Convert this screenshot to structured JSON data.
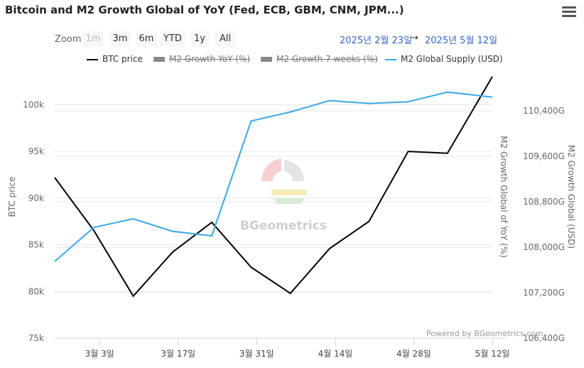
{
  "title": "Bitcoin and M2 Growth Global of YoY (Fed, ECB, GBM, CNM, JPM...)",
  "menu_icon": "hamburger-menu-icon",
  "zoom": {
    "label": "Zoom",
    "buttons": [
      "1m",
      "3m",
      "6m",
      "YTD",
      "1y",
      "All"
    ],
    "disabled": "1m"
  },
  "date_range": {
    "from": "2025년 2월 23일",
    "arrow": "→",
    "to": "2025년 5월 12일"
  },
  "legend": [
    {
      "label": "BTC price",
      "color": "#000000",
      "visible": true
    },
    {
      "label": "M2 Growth YoY (%)",
      "color": "#888888",
      "visible": false
    },
    {
      "label": "M2 Growth 7 weeks (%)",
      "color": "#888888",
      "visible": false
    },
    {
      "label": "M2 Global Supply (USD)",
      "color": "#3aa8e6",
      "visible": true
    }
  ],
  "credits": "Powered by BGeometrics.com",
  "watermark": "BGeometrics",
  "chart_data": {
    "type": "line",
    "title": "Bitcoin and M2 Growth Global of YoY (Fed, ECB, GBM, CNM, JPM...)",
    "x": [
      "2025-02-23",
      "2025-02-28",
      "2025-03-05",
      "2025-03-10",
      "2025-03-15",
      "2025-03-20",
      "2025-03-25",
      "2025-03-30",
      "2025-04-04",
      "2025-04-09",
      "2025-04-14",
      "2025-04-19",
      "2025-04-24",
      "2025-04-29",
      "2025-05-04",
      "2025-05-09",
      "2025-05-12"
    ],
    "x_tick_labels": [
      "3월 3일",
      "3월 17일",
      "3월 31일",
      "4월 14일",
      "4월 28일",
      "5월 12일"
    ],
    "x_ticks": [
      "2025-03-03",
      "2025-03-17",
      "2025-03-31",
      "2025-04-14",
      "2025-04-28",
      "2025-05-12"
    ],
    "series": [
      {
        "name": "BTC price",
        "axis": "left",
        "color": "#000000",
        "points": [
          [
            "2025-02-23",
            92200
          ],
          [
            "2025-03-02",
            86500
          ],
          [
            "2025-03-09",
            79500
          ],
          [
            "2025-03-16",
            84200
          ],
          [
            "2025-03-23",
            87400
          ],
          [
            "2025-03-30",
            82600
          ],
          [
            "2025-04-06",
            79800
          ],
          [
            "2025-04-13",
            84600
          ],
          [
            "2025-04-20",
            87500
          ],
          [
            "2025-04-27",
            95000
          ],
          [
            "2025-05-04",
            94800
          ],
          [
            "2025-05-12",
            103000
          ]
        ]
      },
      {
        "name": "M2 Global Supply (USD)",
        "axis": "right",
        "color": "#3aa8e6",
        "points": [
          [
            "2025-02-23",
            107750
          ],
          [
            "2025-03-02",
            108350
          ],
          [
            "2025-03-09",
            108500
          ],
          [
            "2025-03-16",
            108280
          ],
          [
            "2025-03-23",
            108200
          ],
          [
            "2025-03-30",
            110220
          ],
          [
            "2025-04-06",
            110380
          ],
          [
            "2025-04-13",
            110580
          ],
          [
            "2025-04-20",
            110530
          ],
          [
            "2025-04-27",
            110560
          ],
          [
            "2025-05-04",
            110730
          ],
          [
            "2025-05-12",
            110640
          ]
        ]
      }
    ],
    "y_left": {
      "label": "BTC price",
      "min": 75000,
      "max": 103600,
      "ticks": [
        75000,
        80000,
        85000,
        90000,
        95000,
        100000
      ],
      "tick_labels": [
        "75k",
        "80k",
        "85k",
        "90k",
        "95k",
        "100k"
      ]
    },
    "y_right": {
      "label": "M2 Growth Global (USD)",
      "min": 106400,
      "max": 111100,
      "ticks": [
        106400,
        107200,
        108000,
        108800,
        109600,
        110400
      ],
      "tick_labels": [
        "106,400G",
        "107,200G",
        "108,000G",
        "108,800G",
        "109,600G",
        "110,400G"
      ]
    },
    "y_right_hidden_label": "M2 Growth Global of YoY (%)",
    "grid": true
  }
}
